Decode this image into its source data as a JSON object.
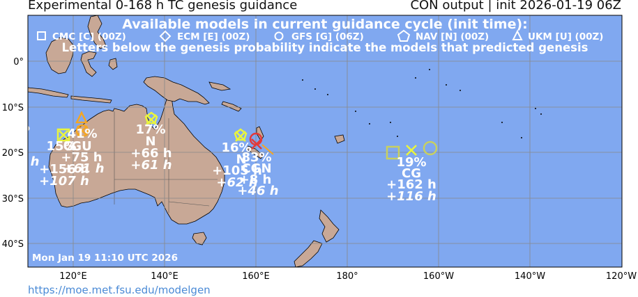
{
  "header": {
    "title": "Experimental 0-168 h TC genesis guidance",
    "subtitle": "CON output | init 2026-01-19 06Z"
  },
  "legend": {
    "heading": "Available models in current guidance cycle (init time):",
    "models": [
      {
        "shape": "square",
        "label": "CMC [C] (00Z)"
      },
      {
        "shape": "diamond",
        "label": "ECM [E] (00Z)"
      },
      {
        "shape": "circle",
        "label": "GFS [G] (06Z)"
      },
      {
        "shape": "pentagon",
        "label": "NAV [N] (00Z)"
      },
      {
        "shape": "triangle",
        "label": "UKM [U] (00Z)"
      }
    ],
    "note": "Letters below the genesis probability indicate the models that predicted genesis"
  },
  "axes": {
    "lat_labels": [
      "0°",
      "10°S",
      "20°S",
      "30°S",
      "40°S"
    ],
    "lon_labels": [
      "120°E",
      "140°E",
      "160°E",
      "180°",
      "160°W",
      "140°W",
      "120°W"
    ]
  },
  "timestamp": "Mon Jan 19 11:10 UTC 2026",
  "url": "https://moe.met.fsu.edu/modelgen",
  "colors": {
    "ocean": "#80a8f0",
    "land": "#c8a896",
    "yellow": "#eaf53c",
    "orange": "#f5a623",
    "red": "#e23a3a",
    "olive": "#c8d060"
  },
  "edge_text": {
    "pct": "%",
    "h": "h",
    "h_italic": "h"
  },
  "areas": [
    {
      "name": "west-australia",
      "probability": "41%",
      "models": "GU",
      "times": [
        "+75 h",
        "+61 h"
      ],
      "second_probability": "15%",
      "second_times": [
        "+156 h",
        "+107 h"
      ],
      "overlap_model": "G"
    },
    {
      "name": "gulf-of-carpentaria",
      "probability": "17%",
      "models": "N",
      "times": [
        "+66 h",
        "+61 h"
      ]
    },
    {
      "name": "coral-sea",
      "probability": "16%",
      "models": "N",
      "times": [
        "+105 h",
        "+62 h"
      ],
      "second_probability": "83%",
      "second_models": "CGN",
      "second_times": [
        "+8 h",
        "+46 h"
      ]
    },
    {
      "name": "south-pacific",
      "probability": "19%",
      "models": "CG",
      "times": [
        "+162 h",
        "+116 h"
      ]
    }
  ]
}
